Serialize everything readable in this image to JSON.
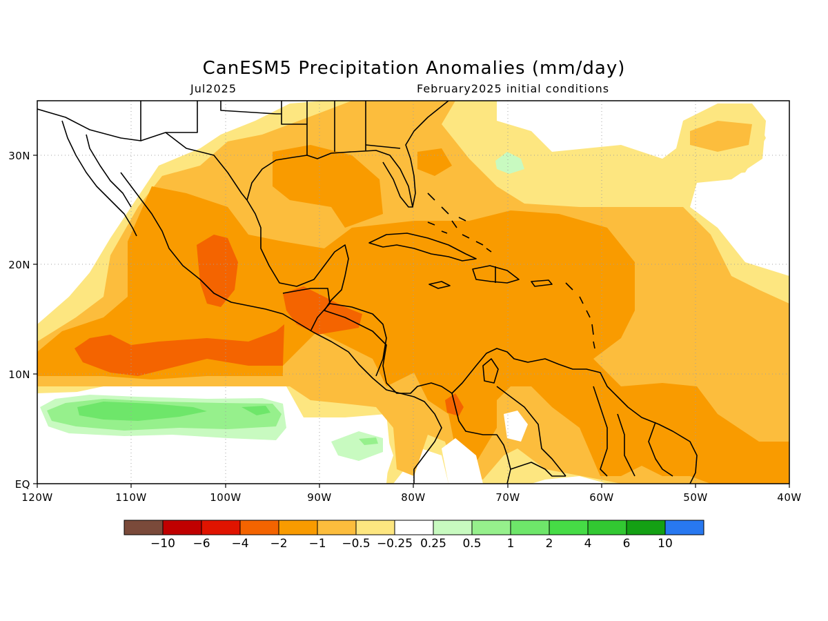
{
  "map": {
    "title": "CanESM5 Precipitation Anomalies (mm/day)",
    "subtitle_left": "Jul2025",
    "subtitle_right": "February2025 initial conditions",
    "lat_labels": [
      "EQ",
      "10N",
      "20N",
      "30N"
    ],
    "lat_values": [
      0,
      10,
      20,
      30
    ],
    "lon_labels": [
      "120W",
      "110W",
      "100W",
      "90W",
      "80W",
      "70W",
      "60W",
      "50W",
      "40W"
    ],
    "lon_values": [
      -120,
      -110,
      -100,
      -90,
      -80,
      -70,
      -60,
      -50,
      -40
    ],
    "lon_range": [
      -120,
      -40
    ],
    "lat_range": [
      0,
      35
    ],
    "grid": "dotted",
    "colorbar": {
      "colors": [
        "#7a4a3a",
        "#c00000",
        "#e01400",
        "#f46400",
        "#f99b00",
        "#fcbd3d",
        "#fde680",
        "#ffffff",
        "#c8fac0",
        "#96f08c",
        "#6ee66a",
        "#46dc46",
        "#32c832",
        "#14a014",
        "#2878f0"
      ],
      "labels": [
        "-10",
        "-6",
        "-4",
        "-2",
        "-1",
        "-0.5",
        "-0.25",
        "0.25",
        "0.5",
        "1",
        "2",
        "4",
        "6",
        "10"
      ]
    },
    "fill_colors": {
      "dry_light": "#fde680",
      "dry_medium": "#fcbd3d",
      "dry_strong": "#f99b00",
      "dry_heavy": "#f46400",
      "wet_light": "#c8fac0",
      "wet_medium": "#96f08c",
      "wet_strong": "#6ee66a"
    }
  }
}
